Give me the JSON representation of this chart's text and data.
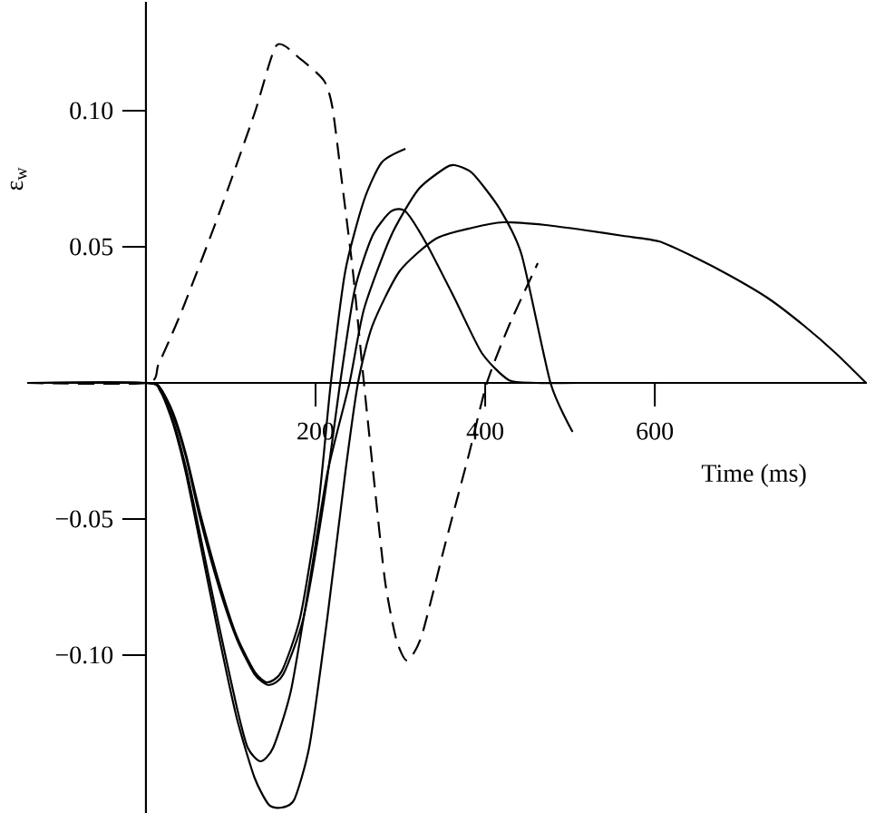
{
  "chart_data": {
    "type": "line",
    "xlabel": "Time (ms)",
    "ylabel": "ε$_{w}$",
    "xlim": [
      -140,
      850
    ],
    "ylim": [
      -0.158,
      0.14
    ],
    "xticks": [
      200,
      400,
      600
    ],
    "yticks": [
      {
        "value": -0.1,
        "label": "−0.10"
      },
      {
        "value": -0.05,
        "label": "−0.05"
      },
      {
        "value": 0.05,
        "label": "0.05"
      },
      {
        "value": 0.1,
        "label": "0.10"
      }
    ],
    "marker": "none",
    "series": [
      {
        "color": "#000000",
        "line_style": "dashed",
        "x": [
          -140,
          0,
          15,
          43,
          86,
          128,
          154,
          182,
          210,
          220,
          231,
          244,
          257,
          270,
          282,
          295,
          308,
          325,
          353,
          381,
          402,
          428,
          462
        ],
        "values": [
          0,
          0,
          0.007,
          0.027,
          0.062,
          0.099,
          0.124,
          0.119,
          0.111,
          0.101,
          0.074,
          0.041,
          0,
          -0.039,
          -0.073,
          -0.094,
          -0.102,
          -0.093,
          -0.059,
          -0.026,
          0,
          0.021,
          0.044
        ]
      },
      {
        "color": "#000000",
        "line_style": "solid",
        "x": [
          -140,
          0,
          17,
          32,
          47,
          64,
          86,
          107,
          128,
          143,
          160,
          182,
          203,
          218,
          235,
          257,
          278,
          306
        ],
        "values": [
          0,
          0,
          -0.002,
          -0.011,
          -0.026,
          -0.048,
          -0.073,
          -0.093,
          -0.106,
          -0.11,
          -0.106,
          -0.086,
          -0.046,
          0,
          0.041,
          0.067,
          0.081,
          0.086
        ]
      },
      {
        "color": "#000000",
        "line_style": "solid",
        "x": [
          -140,
          0,
          17,
          32,
          47,
          64,
          86,
          107,
          128,
          145,
          162,
          186,
          210,
          229,
          246,
          267,
          289,
          306,
          331,
          364,
          396,
          428,
          460,
          509
        ],
        "values": [
          0,
          0,
          -0.002,
          -0.012,
          -0.027,
          -0.05,
          -0.075,
          -0.094,
          -0.107,
          -0.111,
          -0.107,
          -0.086,
          -0.043,
          0,
          0.034,
          0.054,
          0.063,
          0.063,
          0.051,
          0.031,
          0.011,
          0.001,
          0,
          0
        ]
      },
      {
        "color": "#000000",
        "line_style": "solid",
        "x": [
          -140,
          0,
          17,
          32,
          47,
          64,
          86,
          107,
          120,
          135,
          150,
          171,
          193,
          214,
          240,
          257,
          289,
          321,
          353,
          364,
          385,
          417,
          443,
          477,
          503
        ],
        "values": [
          0,
          0,
          -0.003,
          -0.014,
          -0.031,
          -0.056,
          -0.089,
          -0.119,
          -0.134,
          -0.139,
          -0.134,
          -0.113,
          -0.073,
          -0.033,
          0,
          0.027,
          0.054,
          0.071,
          0.079,
          0.08,
          0.077,
          0.064,
          0.047,
          0,
          -0.018
        ]
      },
      {
        "color": "#000000",
        "line_style": "solid",
        "x": [
          -140,
          0,
          17,
          32,
          47,
          64,
          86,
          107,
          128,
          145,
          160,
          175,
          193,
          214,
          235,
          250,
          267,
          299,
          342,
          385,
          421,
          471,
          520,
          563,
          605,
          648,
          691,
          734,
          776,
          813,
          849
        ],
        "values": [
          0,
          0,
          -0.003,
          -0.015,
          -0.033,
          -0.059,
          -0.093,
          -0.123,
          -0.145,
          -0.155,
          -0.156,
          -0.153,
          -0.133,
          -0.086,
          -0.033,
          0,
          0.021,
          0.041,
          0.053,
          0.057,
          0.059,
          0.058,
          0.056,
          0.054,
          0.052,
          0.046,
          0.039,
          0.031,
          0.021,
          0.011,
          0
        ]
      }
    ]
  }
}
